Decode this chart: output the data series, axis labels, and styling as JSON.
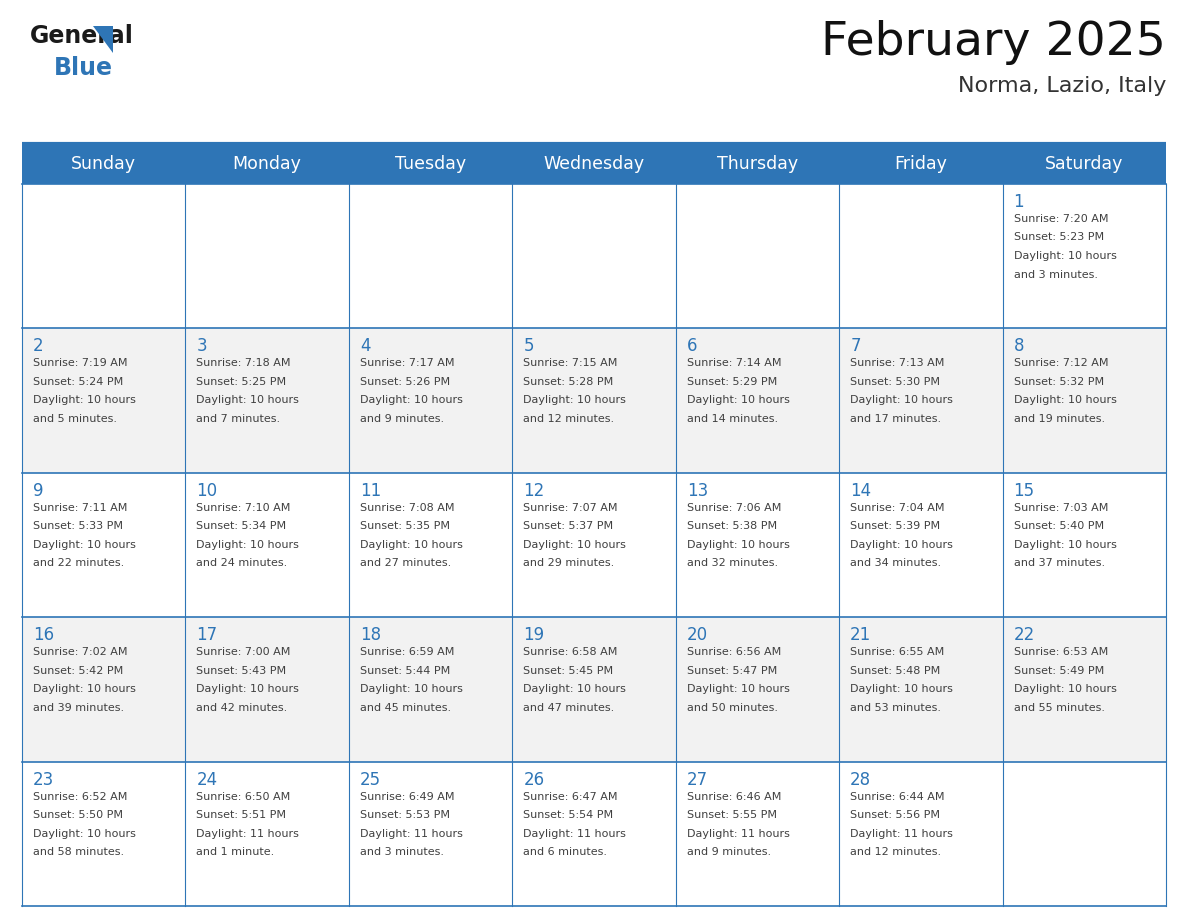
{
  "title": "February 2025",
  "subtitle": "Norma, Lazio, Italy",
  "days_of_week": [
    "Sunday",
    "Monday",
    "Tuesday",
    "Wednesday",
    "Thursday",
    "Friday",
    "Saturday"
  ],
  "header_bg": "#2e75b6",
  "header_text": "#ffffff",
  "cell_bg_white": "#ffffff",
  "cell_bg_gray": "#f2f2f2",
  "line_color": "#2e75b6",
  "day_number_color": "#2e75b6",
  "text_color": "#404040",
  "calendar": [
    [
      null,
      null,
      null,
      null,
      null,
      null,
      {
        "day": "1",
        "sunrise": "7:20 AM",
        "sunset": "5:23 PM",
        "daylight": "10 hours",
        "daylight2": "and 3 minutes."
      }
    ],
    [
      {
        "day": "2",
        "sunrise": "7:19 AM",
        "sunset": "5:24 PM",
        "daylight": "10 hours",
        "daylight2": "and 5 minutes."
      },
      {
        "day": "3",
        "sunrise": "7:18 AM",
        "sunset": "5:25 PM",
        "daylight": "10 hours",
        "daylight2": "and 7 minutes."
      },
      {
        "day": "4",
        "sunrise": "7:17 AM",
        "sunset": "5:26 PM",
        "daylight": "10 hours",
        "daylight2": "and 9 minutes."
      },
      {
        "day": "5",
        "sunrise": "7:15 AM",
        "sunset": "5:28 PM",
        "daylight": "10 hours",
        "daylight2": "and 12 minutes."
      },
      {
        "day": "6",
        "sunrise": "7:14 AM",
        "sunset": "5:29 PM",
        "daylight": "10 hours",
        "daylight2": "and 14 minutes."
      },
      {
        "day": "7",
        "sunrise": "7:13 AM",
        "sunset": "5:30 PM",
        "daylight": "10 hours",
        "daylight2": "and 17 minutes."
      },
      {
        "day": "8",
        "sunrise": "7:12 AM",
        "sunset": "5:32 PM",
        "daylight": "10 hours",
        "daylight2": "and 19 minutes."
      }
    ],
    [
      {
        "day": "9",
        "sunrise": "7:11 AM",
        "sunset": "5:33 PM",
        "daylight": "10 hours",
        "daylight2": "and 22 minutes."
      },
      {
        "day": "10",
        "sunrise": "7:10 AM",
        "sunset": "5:34 PM",
        "daylight": "10 hours",
        "daylight2": "and 24 minutes."
      },
      {
        "day": "11",
        "sunrise": "7:08 AM",
        "sunset": "5:35 PM",
        "daylight": "10 hours",
        "daylight2": "and 27 minutes."
      },
      {
        "day": "12",
        "sunrise": "7:07 AM",
        "sunset": "5:37 PM",
        "daylight": "10 hours",
        "daylight2": "and 29 minutes."
      },
      {
        "day": "13",
        "sunrise": "7:06 AM",
        "sunset": "5:38 PM",
        "daylight": "10 hours",
        "daylight2": "and 32 minutes."
      },
      {
        "day": "14",
        "sunrise": "7:04 AM",
        "sunset": "5:39 PM",
        "daylight": "10 hours",
        "daylight2": "and 34 minutes."
      },
      {
        "day": "15",
        "sunrise": "7:03 AM",
        "sunset": "5:40 PM",
        "daylight": "10 hours",
        "daylight2": "and 37 minutes."
      }
    ],
    [
      {
        "day": "16",
        "sunrise": "7:02 AM",
        "sunset": "5:42 PM",
        "daylight": "10 hours",
        "daylight2": "and 39 minutes."
      },
      {
        "day": "17",
        "sunrise": "7:00 AM",
        "sunset": "5:43 PM",
        "daylight": "10 hours",
        "daylight2": "and 42 minutes."
      },
      {
        "day": "18",
        "sunrise": "6:59 AM",
        "sunset": "5:44 PM",
        "daylight": "10 hours",
        "daylight2": "and 45 minutes."
      },
      {
        "day": "19",
        "sunrise": "6:58 AM",
        "sunset": "5:45 PM",
        "daylight": "10 hours",
        "daylight2": "and 47 minutes."
      },
      {
        "day": "20",
        "sunrise": "6:56 AM",
        "sunset": "5:47 PM",
        "daylight": "10 hours",
        "daylight2": "and 50 minutes."
      },
      {
        "day": "21",
        "sunrise": "6:55 AM",
        "sunset": "5:48 PM",
        "daylight": "10 hours",
        "daylight2": "and 53 minutes."
      },
      {
        "day": "22",
        "sunrise": "6:53 AM",
        "sunset": "5:49 PM",
        "daylight": "10 hours",
        "daylight2": "and 55 minutes."
      }
    ],
    [
      {
        "day": "23",
        "sunrise": "6:52 AM",
        "sunset": "5:50 PM",
        "daylight": "10 hours",
        "daylight2": "and 58 minutes."
      },
      {
        "day": "24",
        "sunrise": "6:50 AM",
        "sunset": "5:51 PM",
        "daylight": "11 hours",
        "daylight2": "and 1 minute."
      },
      {
        "day": "25",
        "sunrise": "6:49 AM",
        "sunset": "5:53 PM",
        "daylight": "11 hours",
        "daylight2": "and 3 minutes."
      },
      {
        "day": "26",
        "sunrise": "6:47 AM",
        "sunset": "5:54 PM",
        "daylight": "11 hours",
        "daylight2": "and 6 minutes."
      },
      {
        "day": "27",
        "sunrise": "6:46 AM",
        "sunset": "5:55 PM",
        "daylight": "11 hours",
        "daylight2": "and 9 minutes."
      },
      {
        "day": "28",
        "sunrise": "6:44 AM",
        "sunset": "5:56 PM",
        "daylight": "11 hours",
        "daylight2": "and 12 minutes."
      },
      null
    ]
  ]
}
